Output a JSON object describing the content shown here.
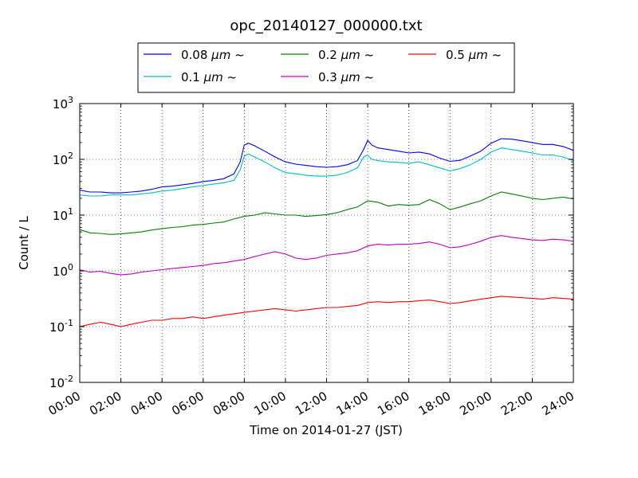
{
  "chart_data": {
    "type": "line",
    "title": "opc_20140127_000000.txt",
    "xlabel": "Time on 2014-01-27 (JST)",
    "ylabel": "Count / L",
    "x_range_hours": [
      0,
      24
    ],
    "ylim": [
      0.01,
      1000
    ],
    "yscale": "log",
    "grid": true,
    "grid_style": "dotted",
    "legend_position": "top-center",
    "legend_columns": 3,
    "x_tick_labels": [
      "00:00",
      "02:00",
      "04:00",
      "06:00",
      "08:00",
      "10:00",
      "12:00",
      "14:00",
      "16:00",
      "18:00",
      "20:00",
      "22:00",
      "24:00"
    ],
    "y_ticks": [
      {
        "value": 0.01,
        "base": "10",
        "exp": "-2"
      },
      {
        "value": 0.1,
        "base": "10",
        "exp": "-1"
      },
      {
        "value": 1,
        "base": "10",
        "exp": "0"
      },
      {
        "value": 10,
        "base": "10",
        "exp": "1"
      },
      {
        "value": 100,
        "base": "10",
        "exp": "2"
      },
      {
        "value": 1000,
        "base": "10",
        "exp": "3"
      }
    ],
    "series": [
      {
        "name": "0.08 μm ~",
        "legend_size": "0.08",
        "legend_unit": "μm",
        "legend_tilde": "~",
        "color": "#0000ff",
        "x": [
          0,
          0.5,
          1,
          1.5,
          2,
          2.5,
          3,
          3.5,
          4,
          4.5,
          5,
          5.5,
          6,
          6.5,
          7,
          7.5,
          7.8,
          8,
          8.2,
          8.5,
          9,
          9.5,
          10,
          10.5,
          11,
          11.5,
          12,
          12.5,
          13,
          13.5,
          13.8,
          14,
          14.2,
          14.5,
          15,
          15.5,
          16,
          16.5,
          17,
          17.5,
          18,
          18.5,
          19,
          19.5,
          20,
          20.5,
          21,
          21.5,
          22,
          22.5,
          23,
          23.5,
          24
        ],
        "y": [
          28,
          26,
          26,
          25,
          25,
          26,
          27,
          29,
          32,
          33,
          35,
          37,
          40,
          42,
          45,
          55,
          90,
          180,
          195,
          175,
          140,
          110,
          90,
          82,
          78,
          74,
          72,
          74,
          80,
          95,
          150,
          220,
          180,
          160,
          150,
          140,
          130,
          135,
          125,
          105,
          92,
          96,
          115,
          140,
          195,
          235,
          230,
          215,
          200,
          185,
          185,
          170,
          145
        ]
      },
      {
        "name": "0.1 μm ~",
        "legend_size": "0.1",
        "legend_unit": "μm",
        "legend_tilde": "~",
        "color": "#00bfbf",
        "x": [
          0,
          0.5,
          1,
          1.5,
          2,
          2.5,
          3,
          3.5,
          4,
          4.5,
          5,
          5.5,
          6,
          6.5,
          7,
          7.5,
          7.8,
          8,
          8.2,
          8.5,
          9,
          9.5,
          10,
          10.5,
          11,
          11.5,
          12,
          12.5,
          13,
          13.5,
          13.8,
          14,
          14.2,
          14.5,
          15,
          15.5,
          16,
          16.5,
          17,
          17.5,
          18,
          18.5,
          19,
          19.5,
          20,
          20.5,
          21,
          21.5,
          22,
          22.5,
          23,
          23.5,
          24
        ],
        "y": [
          23,
          22,
          22,
          23,
          23,
          23,
          24,
          25,
          27,
          28,
          30,
          32,
          34,
          36,
          38,
          42,
          65,
          115,
          125,
          110,
          90,
          70,
          58,
          55,
          52,
          50,
          50,
          52,
          58,
          70,
          110,
          120,
          100,
          95,
          90,
          88,
          85,
          90,
          80,
          70,
          62,
          68,
          80,
          100,
          135,
          160,
          150,
          140,
          130,
          120,
          120,
          110,
          95
        ]
      },
      {
        "name": "0.2 μm ~",
        "legend_size": "0.2",
        "legend_unit": "μm",
        "legend_tilde": "~",
        "color": "#008000",
        "x": [
          0,
          0.5,
          1,
          1.5,
          2,
          2.5,
          3,
          3.5,
          4,
          4.5,
          5,
          5.5,
          6,
          6.5,
          7,
          7.5,
          8,
          8.5,
          9,
          9.5,
          10,
          10.5,
          11,
          11.5,
          12,
          12.5,
          13,
          13.5,
          14,
          14.5,
          15,
          15.5,
          16,
          16.5,
          17,
          17.5,
          18,
          18.5,
          19,
          19.5,
          20,
          20.5,
          21,
          21.5,
          22,
          22.5,
          23,
          23.5,
          24
        ],
        "y": [
          5.5,
          4.8,
          4.7,
          4.5,
          4.6,
          4.8,
          5,
          5.4,
          5.7,
          6,
          6.2,
          6.6,
          6.8,
          7.2,
          7.5,
          8.5,
          9.5,
          10,
          11,
          10.5,
          10,
          10,
          9.5,
          9.8,
          10.2,
          11,
          12.5,
          14,
          18,
          17,
          14.5,
          15.5,
          15,
          15.5,
          19,
          16,
          12.5,
          14,
          16,
          18,
          22,
          26,
          24,
          22,
          20,
          19,
          20,
          21,
          19.5
        ]
      },
      {
        "name": "0.3 μm ~",
        "legend_size": "0.3",
        "legend_unit": "μm",
        "legend_tilde": "~",
        "color": "#bf00bf",
        "x": [
          0,
          0.5,
          1,
          1.5,
          2,
          2.5,
          3,
          3.5,
          4,
          4.5,
          5,
          5.5,
          6,
          6.5,
          7,
          7.5,
          8,
          8.5,
          9,
          9.5,
          10,
          10.5,
          11,
          11.5,
          12,
          12.5,
          13,
          13.5,
          14,
          14.5,
          15,
          15.5,
          16,
          16.5,
          17,
          17.5,
          18,
          18.5,
          19,
          19.5,
          20,
          20.5,
          21,
          21.5,
          22,
          22.5,
          23,
          23.5,
          24
        ],
        "y": [
          1.05,
          0.95,
          0.98,
          0.9,
          0.85,
          0.88,
          0.95,
          1,
          1.05,
          1.1,
          1.15,
          1.2,
          1.25,
          1.35,
          1.4,
          1.5,
          1.6,
          1.8,
          2,
          2.2,
          2,
          1.7,
          1.6,
          1.7,
          1.9,
          2,
          2.1,
          2.3,
          2.8,
          3,
          2.9,
          3,
          3,
          3.1,
          3.3,
          3,
          2.6,
          2.7,
          3,
          3.4,
          4,
          4.3,
          4,
          3.8,
          3.6,
          3.5,
          3.7,
          3.6,
          3.4
        ]
      },
      {
        "name": "0.5 μm ~",
        "legend_size": "0.5",
        "legend_unit": "μm",
        "legend_tilde": "~",
        "color": "#ff0000",
        "x": [
          0,
          0.5,
          1,
          1.5,
          2,
          2.5,
          3,
          3.5,
          4,
          4.5,
          5,
          5.5,
          6,
          6.5,
          7,
          7.5,
          8,
          8.5,
          9,
          9.5,
          10,
          10.5,
          11,
          11.5,
          12,
          12.5,
          13,
          13.5,
          14,
          14.5,
          15,
          15.5,
          16,
          16.5,
          17,
          17.5,
          18,
          18.5,
          19,
          19.5,
          20,
          20.5,
          21,
          21.5,
          22,
          22.5,
          23,
          23.5,
          24
        ],
        "y": [
          0.1,
          0.11,
          0.12,
          0.11,
          0.1,
          0.11,
          0.12,
          0.13,
          0.13,
          0.14,
          0.14,
          0.15,
          0.14,
          0.15,
          0.16,
          0.17,
          0.18,
          0.19,
          0.2,
          0.21,
          0.2,
          0.19,
          0.2,
          0.21,
          0.22,
          0.22,
          0.23,
          0.24,
          0.27,
          0.28,
          0.27,
          0.28,
          0.28,
          0.29,
          0.3,
          0.28,
          0.26,
          0.27,
          0.29,
          0.31,
          0.33,
          0.35,
          0.34,
          0.33,
          0.32,
          0.31,
          0.33,
          0.32,
          0.31
        ]
      }
    ]
  }
}
